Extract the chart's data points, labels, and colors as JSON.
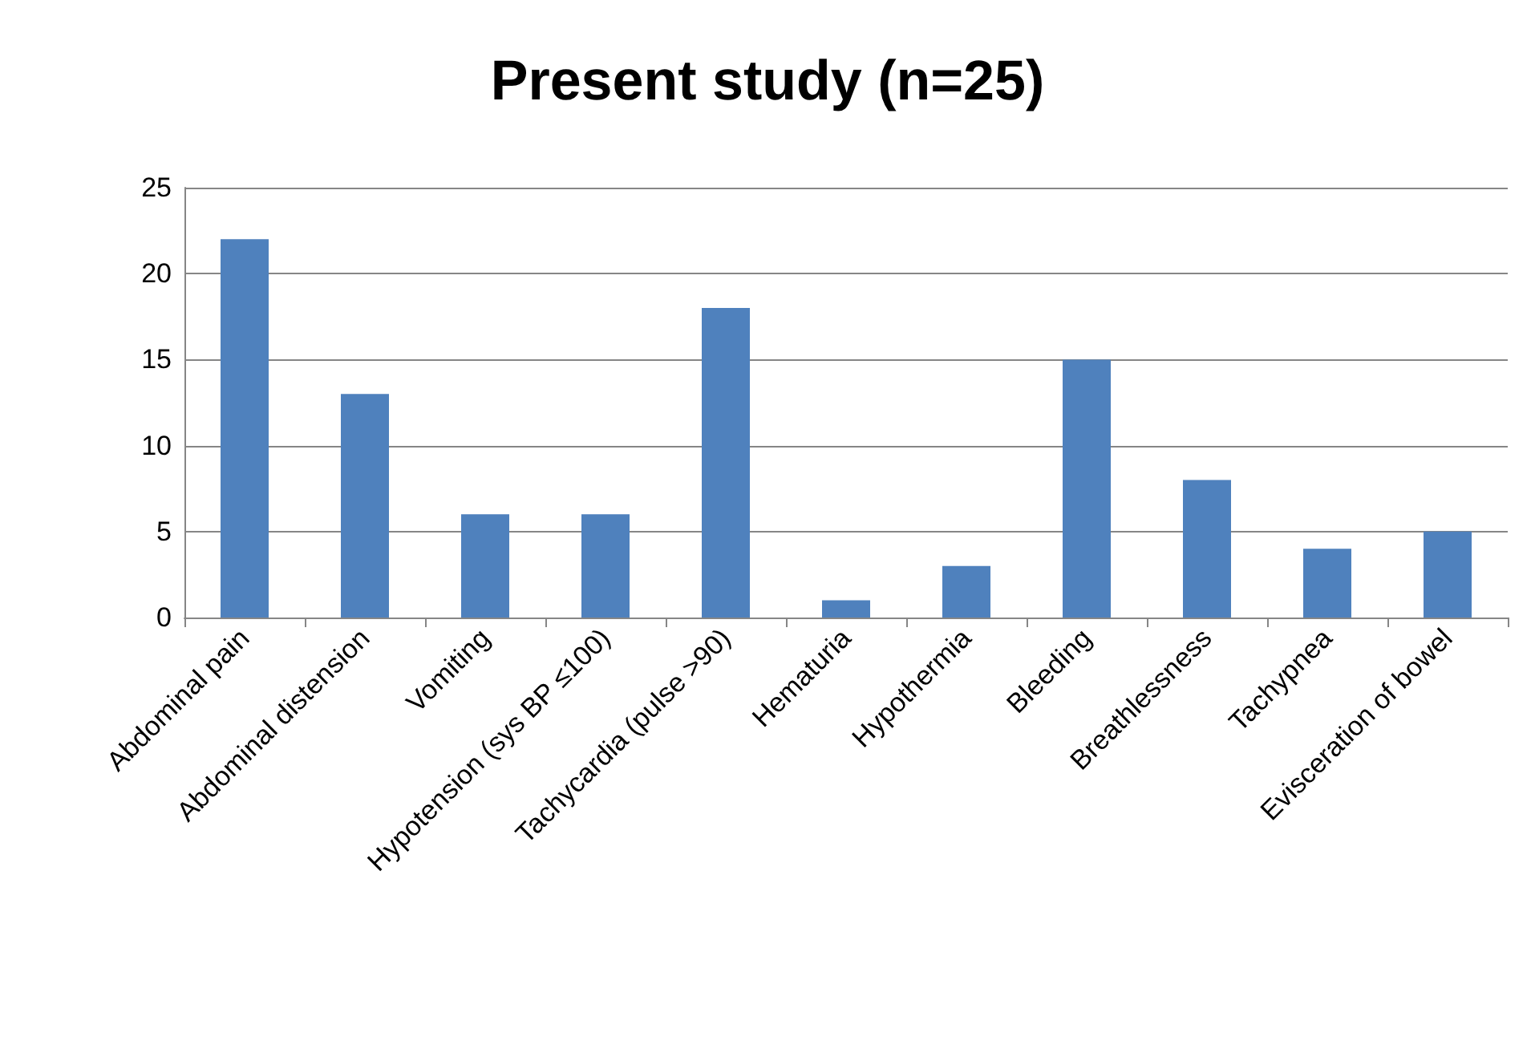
{
  "chart_data": {
    "type": "bar",
    "title": "Present study (n=25)",
    "categories": [
      "Abdominal pain",
      "Abdominal distension",
      "Vomiting",
      "Hypotension (sys BP ≤100)",
      "Tachycardia (pulse >90)",
      "Hematuria",
      "Hypothermia",
      "Bleeding",
      "Breathlessness",
      "Tachypnea",
      "Evisceration of bowel"
    ],
    "values": [
      22,
      13,
      6,
      6,
      18,
      1,
      3,
      15,
      8,
      4,
      5
    ],
    "color": "#4f81bd",
    "ylim": [
      0,
      25
    ],
    "yticks": [
      0,
      5,
      10,
      15,
      20,
      25
    ],
    "grid": "y"
  }
}
